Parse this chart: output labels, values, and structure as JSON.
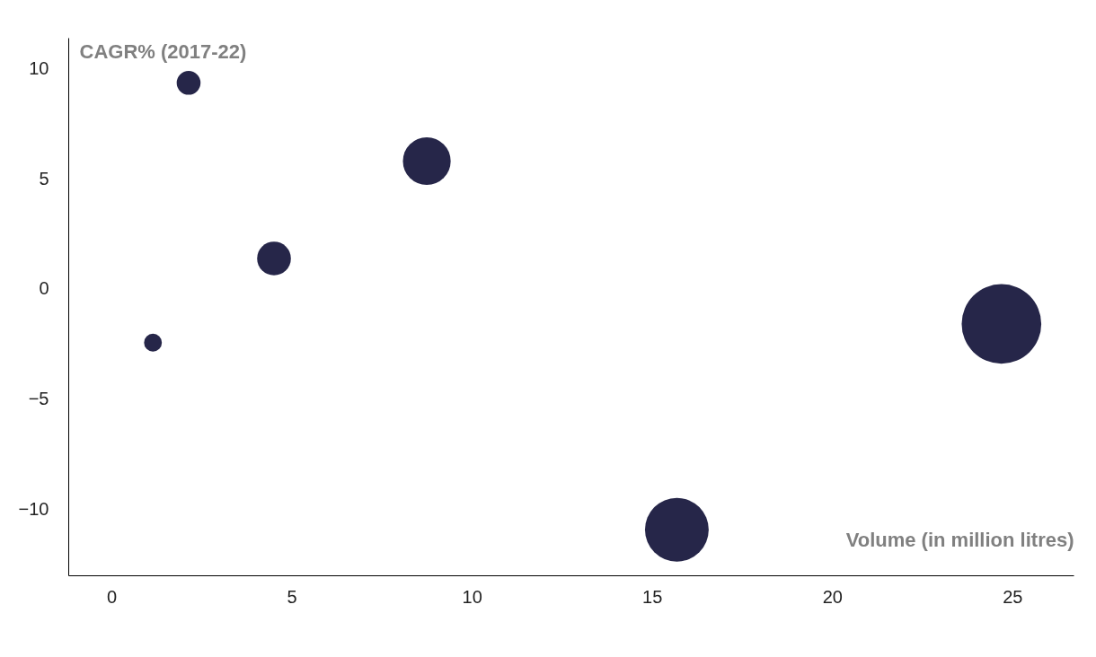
{
  "chart_data": {
    "type": "bubble",
    "xlabel": "Volume (in million litres)",
    "ylabel": "CAGR% (2017-22)",
    "x": [
      2.14,
      8.75,
      4.51,
      1.15,
      24.7,
      15.69
    ],
    "series": [
      {
        "color": "#262649",
        "values": [
          9.35,
          5.8,
          1.38,
          -2.44,
          -1.59,
          -10.93
        ],
        "sizes": [
          0.09,
          0.36,
          0.18,
          0.05,
          1,
          0.64
        ]
      }
    ],
    "xlim": [
      -1.2,
      26.7
    ],
    "xticks": [
      0,
      5,
      10,
      15,
      20,
      25
    ],
    "ylim": [
      -13,
      11.4
    ],
    "yticks": [
      -10,
      -5,
      0,
      5,
      10
    ],
    "grid": false,
    "legend": false
  }
}
